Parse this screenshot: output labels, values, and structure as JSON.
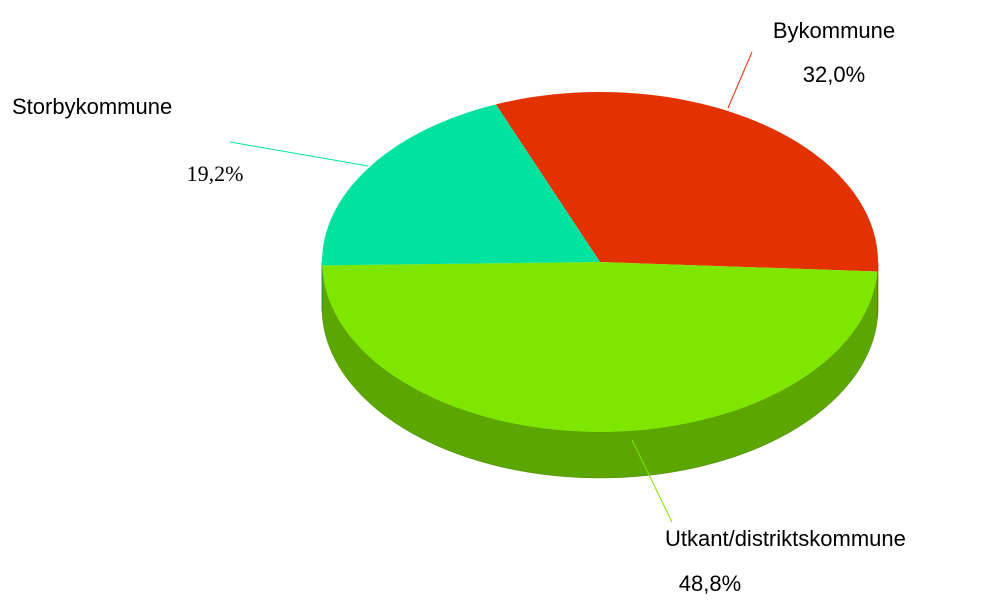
{
  "chart_data": {
    "type": "pie",
    "categories": [
      "Bykommune",
      "Utkant/distriktskommune",
      "Storbykommune"
    ],
    "values": [
      32.0,
      48.8,
      19.2
    ],
    "value_labels": [
      "32,0%",
      "48,8%",
      "19,2%"
    ],
    "colors": [
      "#e33200",
      "#7ee600",
      "#00e3a0"
    ]
  }
}
